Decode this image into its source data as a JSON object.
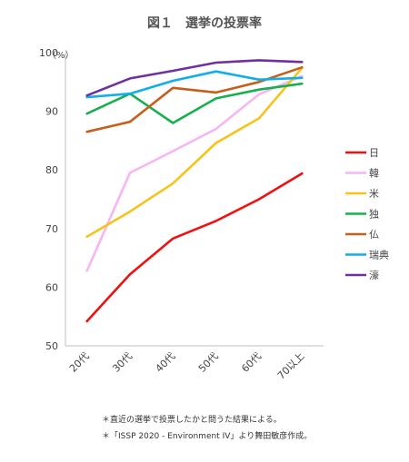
{
  "chart_data": {
    "type": "line",
    "title": "図１　選挙の投票率",
    "unit_label": "（%）",
    "xlabel": "",
    "ylabel": "",
    "categories": [
      "20代",
      "30代",
      "40代",
      "50代",
      "60代",
      "70以上"
    ],
    "ylim": [
      50,
      100
    ],
    "yticks": [
      50,
      60,
      70,
      80,
      90,
      100
    ],
    "grid": false,
    "legend_position": "right",
    "series": [
      {
        "name": "日",
        "color": "#ee1111",
        "values": [
          54.2,
          62.2,
          68.3,
          71.3,
          75.0,
          79.4
        ]
      },
      {
        "name": "韓",
        "color": "#f7b6f3",
        "values": [
          62.8,
          79.5,
          83.2,
          87.0,
          92.9,
          96.0
        ]
      },
      {
        "name": "米",
        "color": "#f7c31a",
        "values": [
          68.6,
          72.9,
          77.7,
          84.6,
          88.8,
          97.4
        ]
      },
      {
        "name": "独",
        "color": "#18b04e",
        "values": [
          89.6,
          93.0,
          88.0,
          92.2,
          93.7,
          94.7
        ]
      },
      {
        "name": "仏",
        "color": "#c55f1b",
        "values": [
          86.5,
          88.2,
          94.0,
          93.2,
          95.0,
          97.5
        ]
      },
      {
        "name": "瑞典",
        "color": "#11aee8",
        "values": [
          92.4,
          93.0,
          95.2,
          96.8,
          95.4,
          95.7
        ]
      },
      {
        "name": "濠",
        "color": "#7030a0",
        "values": [
          92.7,
          95.6,
          96.9,
          98.3,
          98.7,
          98.4
        ]
      }
    ]
  },
  "notes": [
    "＊直近の選挙で投票したかと問うた結果による。",
    "＊「ISSP 2020 - Environment IV」より舞田敏彦作成。"
  ]
}
